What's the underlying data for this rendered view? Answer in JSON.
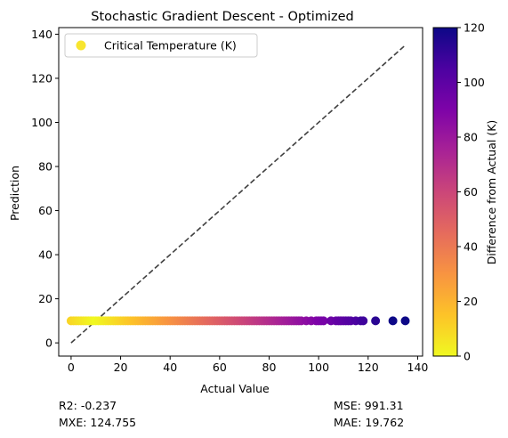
{
  "chart_data": {
    "type": "scatter",
    "title": "Stochastic Gradient Descent - Optimized",
    "xlabel": "Actual Value",
    "ylabel": "Prediction",
    "xlim": [
      -5,
      142
    ],
    "ylim": [
      -6,
      143
    ],
    "xticks": [
      0,
      20,
      40,
      60,
      80,
      100,
      120,
      140
    ],
    "yticks": [
      0,
      20,
      40,
      60,
      80,
      100,
      120,
      140
    ],
    "grid": false,
    "legend": {
      "location": "top-left",
      "entries": [
        "Critical Temperature (K)"
      ],
      "marker_color": "#f8e52f"
    },
    "reference_line": {
      "style": "dashed",
      "color": "#404040",
      "from": [
        0,
        0
      ],
      "to": [
        135,
        135
      ]
    },
    "series": [
      {
        "name": "Critical Temperature (K)",
        "x": [
          0,
          1,
          2,
          3,
          4,
          5,
          6,
          7,
          8,
          9,
          10,
          11,
          12,
          13,
          14,
          15,
          16,
          17,
          18,
          19,
          20,
          21,
          22,
          23,
          24,
          25,
          26,
          27,
          28,
          29,
          30,
          31,
          32,
          33,
          34,
          35,
          36,
          37,
          38,
          39,
          40,
          41,
          42,
          43,
          44,
          45,
          46,
          47,
          48,
          49,
          50,
          51,
          52,
          53,
          54,
          55,
          56,
          57,
          58,
          59,
          60,
          61,
          62,
          63,
          64,
          65,
          66,
          67,
          68,
          69,
          70,
          71,
          72,
          73,
          74,
          75,
          76,
          77,
          78,
          79,
          80,
          81,
          82,
          83,
          84,
          85,
          86,
          87,
          88,
          89,
          90,
          91,
          92,
          93,
          95,
          97,
          99,
          100,
          101,
          102,
          105,
          107,
          108,
          109,
          110,
          111,
          112,
          113,
          115,
          117,
          118,
          123,
          130,
          135
        ],
        "y": [
          10,
          10,
          10,
          10,
          10,
          10,
          10,
          10,
          10,
          10,
          10,
          10,
          10,
          10,
          10,
          10,
          10,
          10,
          10,
          10,
          10,
          10,
          10,
          10,
          10,
          10,
          10,
          10,
          10,
          10,
          10,
          10,
          10,
          10,
          10,
          10,
          10,
          10,
          10,
          10,
          10,
          10,
          10,
          10,
          10,
          10,
          10,
          10,
          10,
          10,
          10,
          10,
          10,
          10,
          10,
          10,
          10,
          10,
          10,
          10,
          10,
          10,
          10,
          10,
          10,
          10,
          10,
          10,
          10,
          10,
          10,
          10,
          10,
          10,
          10,
          10,
          10,
          10,
          10,
          10,
          10,
          10,
          10,
          10,
          10,
          10,
          10,
          10,
          10,
          10,
          10,
          10,
          10,
          10,
          10,
          10,
          10,
          10,
          10,
          10,
          10,
          10,
          10,
          10,
          10,
          10,
          10,
          10,
          10,
          10,
          10,
          10,
          10,
          10
        ]
      }
    ],
    "colorbar": {
      "label": "Difference from Actual (K)",
      "range": [
        0,
        120
      ],
      "ticks": [
        0,
        20,
        40,
        60,
        80,
        100,
        120
      ],
      "colormap": "plasma (reversed)"
    }
  },
  "stats": {
    "r2": "R2: -0.237",
    "mxe": "MXE: 124.755",
    "mse": "MSE: 991.31",
    "mae": "MAE: 19.762"
  }
}
